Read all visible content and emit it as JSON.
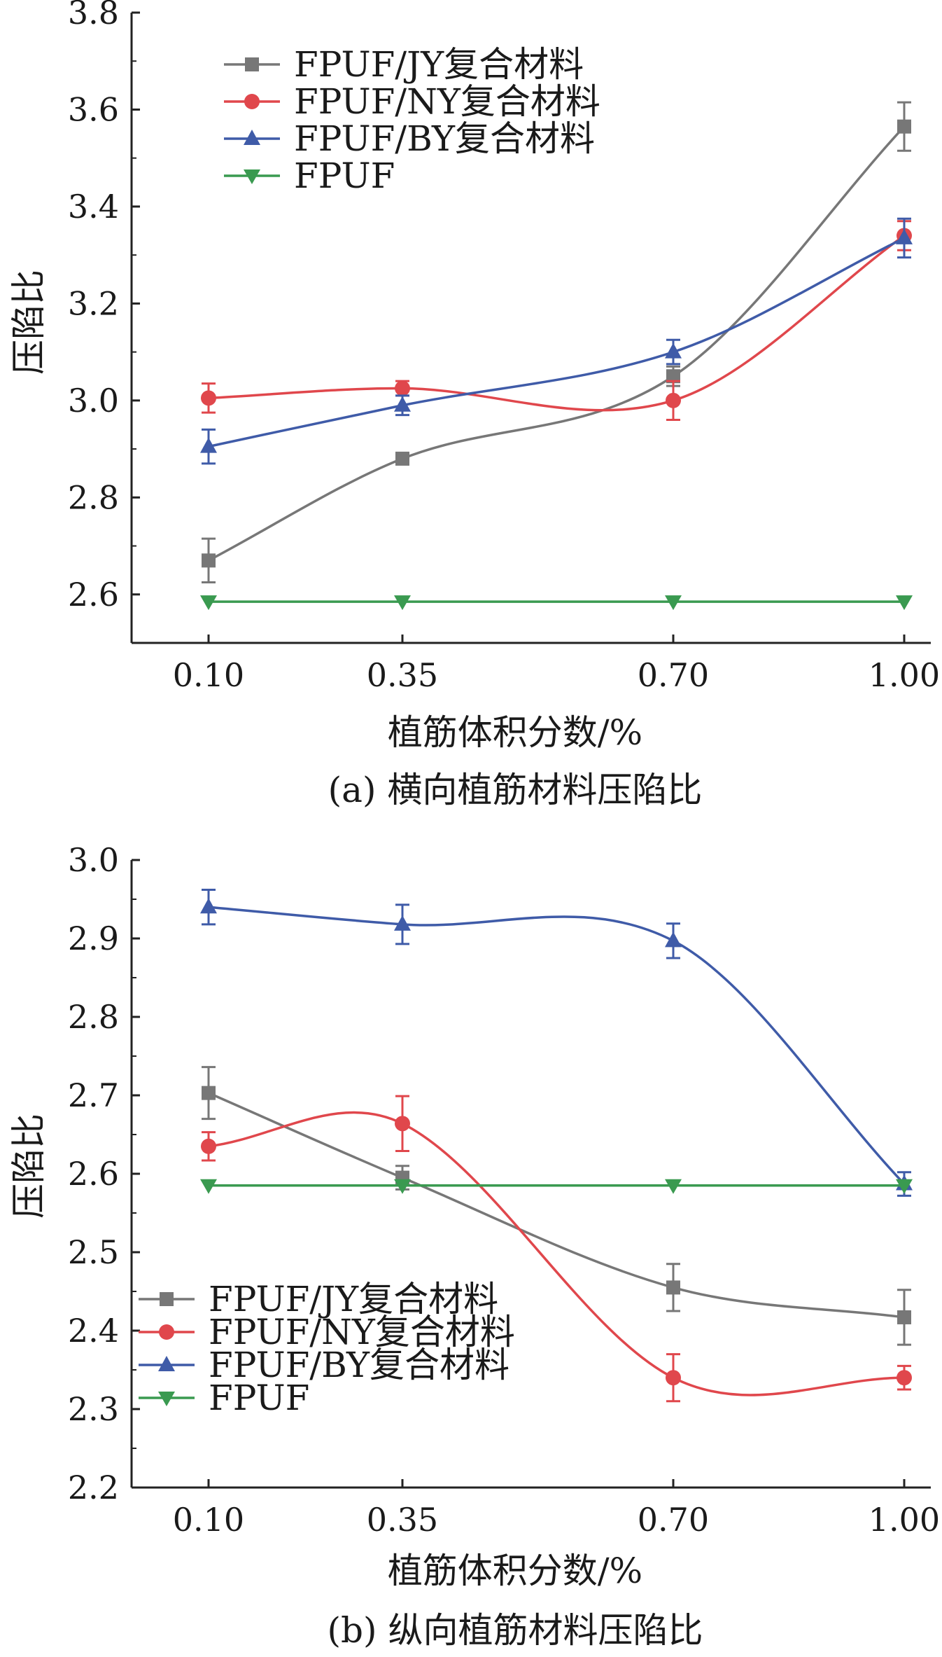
{
  "series_style": [
    {
      "color": "#777777",
      "marker": "square"
    },
    {
      "color": "#e0474c",
      "marker": "circle"
    },
    {
      "color": "#3f5ba8",
      "marker": "triangle-up"
    },
    {
      "color": "#3a9a50",
      "marker": "triangle-down"
    }
  ],
  "chart_data": [
    {
      "type": "line",
      "caption": "(a) 横向植筋材料压陷比",
      "xlabel": "植筋体积分数/%",
      "ylabel": "压陷比",
      "x": [
        0.1,
        0.35,
        0.7,
        1.0
      ],
      "x_tick_labels": [
        "0.10",
        "0.35",
        "0.70",
        "1.00"
      ],
      "ylim": [
        2.5,
        3.8
      ],
      "y_ticks": [
        2.6,
        2.8,
        3.0,
        3.2,
        3.4,
        3.6,
        3.8
      ],
      "y_tick_labels": [
        "2.6",
        "2.8",
        "3.0",
        "3.2",
        "3.4",
        "3.6",
        "3.8"
      ],
      "legend_position": "top-left",
      "series": [
        {
          "name": "FPUF/JY复合材料",
          "values": [
            2.67,
            2.88,
            3.05,
            3.565
          ],
          "errors": [
            0.045,
            0.01,
            0.02,
            0.05
          ]
        },
        {
          "name": "FPUF/NY复合材料",
          "values": [
            3.005,
            3.025,
            3.0,
            3.34
          ],
          "errors": [
            0.03,
            0.015,
            0.04,
            0.03
          ]
        },
        {
          "name": "FPUF/BY复合材料",
          "values": [
            2.905,
            2.99,
            3.1,
            3.335
          ],
          "errors": [
            0.035,
            0.02,
            0.025,
            0.04
          ]
        },
        {
          "name": "FPUF",
          "values": [
            2.585,
            2.585,
            2.585,
            2.585
          ],
          "errors": [
            0,
            0,
            0,
            0
          ]
        }
      ]
    },
    {
      "type": "line",
      "caption": "(b) 纵向植筋材料压陷比",
      "xlabel": "植筋体积分数/%",
      "ylabel": "压陷比",
      "x": [
        0.1,
        0.35,
        0.7,
        1.0
      ],
      "x_tick_labels": [
        "0.10",
        "0.35",
        "0.70",
        "1.00"
      ],
      "ylim": [
        2.2,
        3.0
      ],
      "y_ticks": [
        2.2,
        2.3,
        2.4,
        2.5,
        2.6,
        2.7,
        2.8,
        2.9,
        3.0
      ],
      "y_tick_labels": [
        "2.2",
        "2.3",
        "2.4",
        "2.5",
        "2.6",
        "2.7",
        "2.8",
        "2.9",
        "3.0"
      ],
      "legend_position": "bottom-left",
      "series": [
        {
          "name": "FPUF/JY复合材料",
          "values": [
            2.703,
            2.595,
            2.455,
            2.417
          ],
          "errors": [
            0.033,
            0.015,
            0.03,
            0.035
          ]
        },
        {
          "name": "FPUF/NY复合材料",
          "values": [
            2.635,
            2.664,
            2.34,
            2.34
          ],
          "errors": [
            0.018,
            0.035,
            0.03,
            0.015
          ]
        },
        {
          "name": "FPUF/BY复合材料",
          "values": [
            2.94,
            2.918,
            2.897,
            2.587
          ],
          "errors": [
            0.022,
            0.025,
            0.022,
            0.015
          ]
        },
        {
          "name": "FPUF",
          "values": [
            2.585,
            2.585,
            2.585,
            2.585
          ],
          "errors": [
            0,
            0,
            0,
            0
          ]
        }
      ]
    }
  ]
}
